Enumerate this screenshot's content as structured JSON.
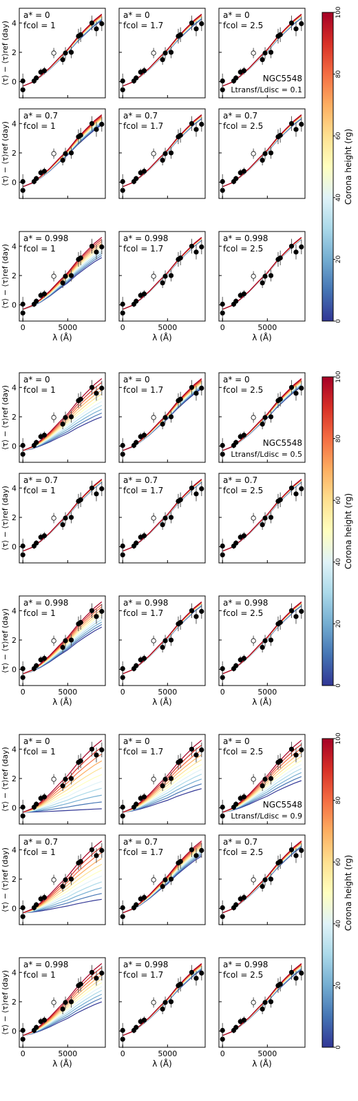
{
  "figure": {
    "y_axis_label": "⟨τ⟩ − ⟨τ⟩ref (day)",
    "x_axis_label": "λ (Å)",
    "colorbar_label": "Corona height (rg)",
    "colorbar_ticks": [
      "0",
      "20",
      "40",
      "60",
      "80",
      "100"
    ],
    "colormap": [
      "#313695",
      "#4575b4",
      "#74add1",
      "#abd9e9",
      "#e0f3f8",
      "#ffffbf",
      "#fee090",
      "#fdae61",
      "#f46d43",
      "#d73027",
      "#a50026"
    ]
  },
  "chart_data": {
    "type": "line",
    "source": "NGC5548",
    "xlabel": "λ (Å)",
    "ylabel": "⟨τ⟩ − ⟨τ⟩ref (day)",
    "xlim": [
      -400,
      9200
    ],
    "ylim": [
      -1.1,
      5.0
    ],
    "xticks": [
      0,
      5000
    ],
    "yticks": [
      0,
      2,
      4
    ],
    "colorbar": {
      "label": "Corona height (rg)",
      "range": [
        0,
        100
      ],
      "ticks": [
        0,
        20,
        40,
        60,
        80,
        100
      ]
    },
    "observed_points": [
      {
        "x": 0,
        "y": -0.55,
        "err": 0.6,
        "open": false
      },
      {
        "x": 0,
        "y": 0.05,
        "err": 0.5,
        "open": false
      },
      {
        "x": 1250,
        "y": 0.05,
        "err": 0.2,
        "open": false
      },
      {
        "x": 1500,
        "y": 0.25,
        "err": 0.2,
        "open": false
      },
      {
        "x": 2000,
        "y": 0.65,
        "err": 0.25,
        "open": false
      },
      {
        "x": 2400,
        "y": 0.75,
        "err": 0.25,
        "open": false
      },
      {
        "x": 3450,
        "y": 1.95,
        "err": 0.35,
        "open": true
      },
      {
        "x": 4450,
        "y": 1.5,
        "err": 0.35,
        "open": false
      },
      {
        "x": 4750,
        "y": 1.95,
        "err": 0.4,
        "open": false
      },
      {
        "x": 5400,
        "y": 2.0,
        "err": 0.4,
        "open": false
      },
      {
        "x": 6200,
        "y": 3.1,
        "err": 0.5,
        "open": false
      },
      {
        "x": 6450,
        "y": 3.2,
        "err": 0.5,
        "open": false
      },
      {
        "x": 7700,
        "y": 4.0,
        "err": 0.5,
        "open": false
      },
      {
        "x": 8200,
        "y": 3.6,
        "err": 0.5,
        "open": false
      },
      {
        "x": 8800,
        "y": 3.95,
        "err": 0.5,
        "open": false
      }
    ],
    "model_x": [
      0,
      1000,
      2000,
      3000,
      4000,
      5000,
      6000,
      7000,
      8000,
      8800
    ],
    "model_base": [
      -0.3,
      -0.05,
      0.4,
      0.95,
      1.6,
      2.2,
      2.95,
      3.6,
      4.2,
      4.6
    ],
    "groups": [
      {
        "ratio_label": "Ltransf/Ldisc = 0.1",
        "panels": [
          {
            "a_label": "a* = 0",
            "f_label": "fcol = 1",
            "spread": 0.06
          },
          {
            "a_label": "a* = 0",
            "f_label": "fcol = 1.7",
            "spread": 0.05
          },
          {
            "a_label": "a* = 0",
            "f_label": "fcol = 2.5",
            "spread": 0.04
          },
          {
            "a_label": "a* = 0.7",
            "f_label": "fcol = 1",
            "spread": 0.1
          },
          {
            "a_label": "a* = 0.7",
            "f_label": "fcol = 1.7",
            "spread": 0.04
          },
          {
            "a_label": "a* = 0.7",
            "f_label": "fcol = 2.5",
            "spread": 0.04
          },
          {
            "a_label": "a* = 0.998",
            "f_label": "fcol = 1",
            "spread": 0.2
          },
          {
            "a_label": "a* = 0.998",
            "f_label": "fcol = 1.7",
            "spread": 0.03
          },
          {
            "a_label": "a* = 0.998",
            "f_label": "fcol = 2.5",
            "spread": 0.02
          }
        ]
      },
      {
        "ratio_label": "Ltransf/Ldisc = 0.5",
        "panels": [
          {
            "a_label": "a* = 0",
            "f_label": "fcol = 1",
            "spread": 0.38
          },
          {
            "a_label": "a* = 0",
            "f_label": "fcol = 1.7",
            "spread": 0.1
          },
          {
            "a_label": "a* = 0",
            "f_label": "fcol = 2.5",
            "spread": 0.08
          },
          {
            "a_label": "a* = 0.7",
            "f_label": "fcol = 1",
            "spread": 0.03
          },
          {
            "a_label": "a* = 0.7",
            "f_label": "fcol = 1.7",
            "spread": 0.03
          },
          {
            "a_label": "a* = 0.7",
            "f_label": "fcol = 2.5",
            "spread": 0.03
          },
          {
            "a_label": "a* = 0.998",
            "f_label": "fcol = 1",
            "spread": 0.25
          },
          {
            "a_label": "a* = 0.998",
            "f_label": "fcol = 1.7",
            "spread": 0.04
          },
          {
            "a_label": "a* = 0.998",
            "f_label": "fcol = 2.5",
            "spread": 0.04
          }
        ]
      },
      {
        "ratio_label": "Ltransf/Ldisc = 0.9",
        "panels": [
          {
            "a_label": "a* = 0",
            "f_label": "fcol = 1",
            "spread": 0.68
          },
          {
            "a_label": "a* = 0",
            "f_label": "fcol = 1.7",
            "spread": 0.48
          },
          {
            "a_label": "a* = 0",
            "f_label": "fcol = 2.5",
            "spread": 0.4
          },
          {
            "a_label": "a* = 0.7",
            "f_label": "fcol = 1",
            "spread": 0.58
          },
          {
            "a_label": "a* = 0.7",
            "f_label": "fcol = 1.7",
            "spread": 0.15
          },
          {
            "a_label": "a* = 0.7",
            "f_label": "fcol = 2.5",
            "spread": 0.06
          },
          {
            "a_label": "a* = 0.998",
            "f_label": "fcol = 1",
            "spread": 0.38
          },
          {
            "a_label": "a* = 0.998",
            "f_label": "fcol = 1.7",
            "spread": 0.06
          },
          {
            "a_label": "a* = 0.998",
            "f_label": "fcol = 2.5",
            "spread": 0.06
          }
        ]
      }
    ]
  }
}
